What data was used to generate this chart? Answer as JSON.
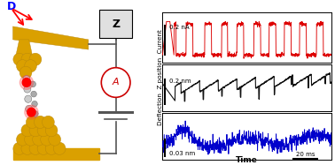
{
  "fig_width": 3.78,
  "fig_height": 1.87,
  "dpi": 100,
  "ylabel_text": "Deflection  Z position  Current",
  "xlabel_text": "Time",
  "scale_bar_text": "20 ms",
  "panel1_label": "0.2 nA",
  "panel2_label": "0.2 nm",
  "panel3_label": "0.03 nm",
  "red_color": "#dd0000",
  "black_color": "#111111",
  "blue_color": "#0000cc",
  "gold_color": "#DAA000",
  "background": "#ffffff",
  "n_points": 800,
  "cantilever_color": "#E6A800",
  "wire_color": "#888888"
}
